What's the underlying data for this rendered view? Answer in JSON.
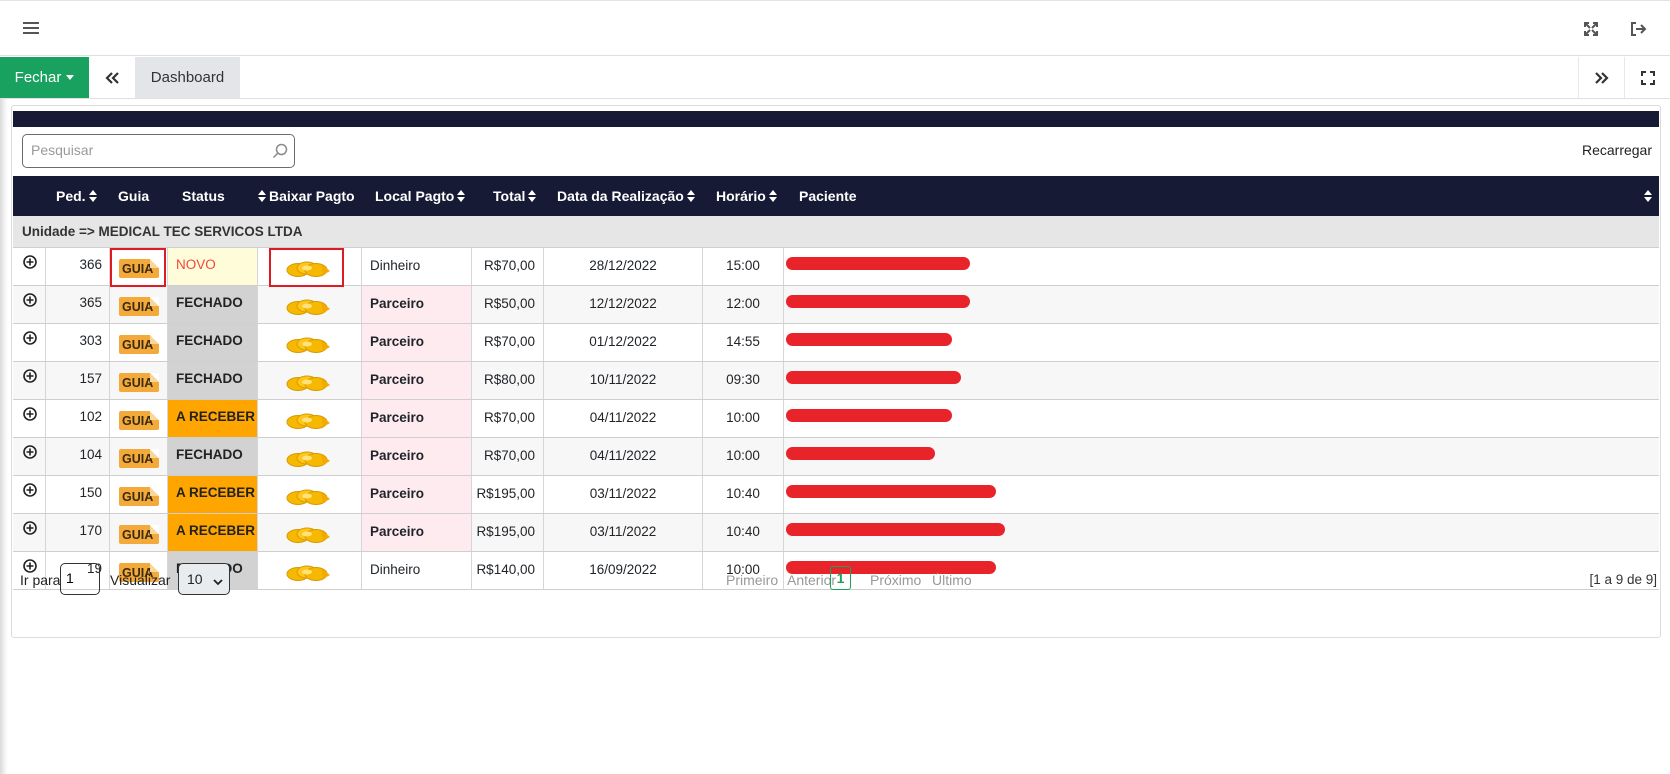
{
  "topbar": {
    "menu_icon": "hamburger-icon",
    "expand_icon": "expand-arrows-icon",
    "logout_icon": "sign-out-icon"
  },
  "tabs": {
    "close_label": "Fechar",
    "prev_icon": "double-chevron-left-icon",
    "active_tab": "Dashboard",
    "next_icon": "double-chevron-right-icon",
    "fullscreen_icon": "fullscreen-icon"
  },
  "toolbar": {
    "search_placeholder": "Pesquisar",
    "reload_label": "Recarregar"
  },
  "table": {
    "columns": [
      "Ped.",
      "Guia",
      "Status",
      "Baixar Pagto",
      "Local Pagto",
      "Total",
      "Data da Realização",
      "Horário",
      "Paciente"
    ],
    "group_label": "Unidade => MEDICAL TEC SERVICOS LTDA",
    "guia_label": "GUIA",
    "rows": [
      {
        "ped": "366",
        "status": "NOVO",
        "local": "Dinheiro",
        "total": "R$70,00",
        "data": "28/12/2022",
        "hora": "15:00",
        "paciente_redacted_fraction": 0.21
      },
      {
        "ped": "365",
        "status": "FECHADO",
        "local": "Parceiro",
        "total": "R$50,00",
        "data": "12/12/2022",
        "hora": "12:00",
        "paciente_redacted_fraction": 0.21
      },
      {
        "ped": "303",
        "status": "FECHADO",
        "local": "Parceiro",
        "total": "R$70,00",
        "data": "01/12/2022",
        "hora": "14:55",
        "paciente_redacted_fraction": 0.19
      },
      {
        "ped": "157",
        "status": "FECHADO",
        "local": "Parceiro",
        "total": "R$80,00",
        "data": "10/11/2022",
        "hora": "09:30",
        "paciente_redacted_fraction": 0.2
      },
      {
        "ped": "102",
        "status": "A RECEBER",
        "local": "Parceiro",
        "total": "R$70,00",
        "data": "04/11/2022",
        "hora": "10:00",
        "paciente_redacted_fraction": 0.19
      },
      {
        "ped": "104",
        "status": "FECHADO",
        "local": "Parceiro",
        "total": "R$70,00",
        "data": "04/11/2022",
        "hora": "10:00",
        "paciente_redacted_fraction": 0.17
      },
      {
        "ped": "150",
        "status": "A RECEBER",
        "local": "Parceiro",
        "total": "R$195,00",
        "data": "03/11/2022",
        "hora": "10:40",
        "paciente_redacted_fraction": 0.24
      },
      {
        "ped": "170",
        "status": "A RECEBER",
        "local": "Parceiro",
        "total": "R$195,00",
        "data": "03/11/2022",
        "hora": "10:40",
        "paciente_redacted_fraction": 0.25
      },
      {
        "ped": "19",
        "status": "FECHADO",
        "local": "Dinheiro",
        "total": "R$140,00",
        "data": "16/09/2022",
        "hora": "10:00",
        "paciente_redacted_fraction": 0.24
      }
    ]
  },
  "footer": {
    "goto_label": "Ir para",
    "goto_value": "1",
    "view_label": "Visualizar",
    "view_value": "10",
    "first": "Primeiro",
    "prev": "Anterior",
    "current_page": "1",
    "next": "Próximo",
    "last": "Último",
    "summary": "[1 a 9 de 9]"
  },
  "colors": {
    "header_bg": "#161a34",
    "close_button": "#19a15f",
    "status_novo_bg": "#fffdd9",
    "status_novo_text": "#f0473d",
    "status_fechado_bg": "#d2d2d2",
    "status_receber_bg": "#ffa500",
    "local_parceiro_bg": "#fdebf0",
    "redaction": "#e8232a"
  }
}
